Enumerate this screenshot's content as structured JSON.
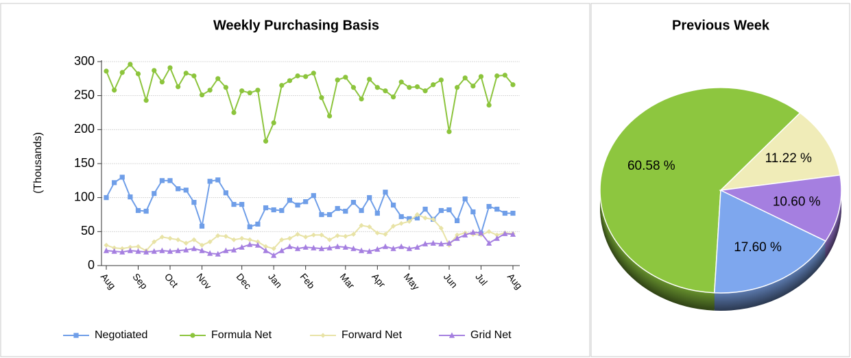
{
  "chart_data": [
    {
      "type": "line",
      "title": "Weekly Purchasing Basis",
      "y_label": "(Thousands)",
      "categories": [
        "Aug",
        null,
        null,
        null,
        "Sep",
        null,
        null,
        null,
        "Oct",
        null,
        null,
        null,
        "Nov",
        null,
        null,
        null,
        null,
        "Dec",
        null,
        null,
        null,
        "Jan",
        null,
        null,
        null,
        "Feb",
        null,
        null,
        null,
        null,
        "Mar",
        null,
        null,
        null,
        "Apr",
        null,
        null,
        null,
        "May",
        null,
        null,
        null,
        null,
        "Jun",
        null,
        null,
        null,
        "Jul",
        null,
        null,
        null,
        "Aug"
      ],
      "ylim": [
        0,
        300
      ],
      "yticks": [
        0,
        50,
        100,
        150,
        200,
        250,
        300
      ],
      "grid": true,
      "legend": "bottom",
      "series": [
        {
          "name": "Negotiated",
          "color": "#6f9ee8",
          "marker": "square",
          "values": [
            100,
            122,
            130,
            101,
            81,
            80,
            106,
            125,
            125,
            113,
            111,
            93,
            58,
            124,
            126,
            107,
            90,
            90,
            57,
            61,
            85,
            82,
            81,
            96,
            89,
            94,
            103,
            75,
            75,
            84,
            80,
            93,
            81,
            100,
            77,
            108,
            89,
            72,
            69,
            70,
            83,
            68,
            81,
            82,
            66,
            98,
            79,
            47,
            87,
            83,
            77,
            77
          ]
        },
        {
          "name": "Formula Net",
          "color": "#8cc43c",
          "marker": "circle",
          "values": [
            286,
            258,
            284,
            296,
            282,
            243,
            287,
            270,
            291,
            263,
            283,
            279,
            251,
            258,
            275,
            262,
            225,
            257,
            254,
            258,
            183,
            210,
            265,
            272,
            279,
            278,
            283,
            247,
            220,
            273,
            277,
            262,
            245,
            274,
            262,
            257,
            248,
            270,
            262,
            263,
            257,
            266,
            273,
            197,
            262,
            276,
            264,
            278,
            236,
            279,
            280,
            266
          ]
        },
        {
          "name": "Forward Net",
          "color": "#e8e3a6",
          "marker": "diamond",
          "values": [
            30,
            26,
            25,
            27,
            28,
            22,
            35,
            42,
            40,
            38,
            33,
            38,
            30,
            35,
            44,
            43,
            38,
            40,
            38,
            35,
            28,
            25,
            38,
            40,
            46,
            42,
            45,
            45,
            38,
            44,
            43,
            46,
            59,
            57,
            48,
            46,
            58,
            62,
            65,
            75,
            70,
            68,
            55,
            30,
            45,
            48,
            46,
            45,
            50,
            45,
            48,
            47
          ]
        },
        {
          "name": "Grid Net",
          "color": "#a57fe0",
          "marker": "triangle",
          "values": [
            22,
            21,
            20,
            22,
            21,
            20,
            21,
            22,
            21,
            22,
            23,
            25,
            22,
            18,
            17,
            22,
            23,
            27,
            31,
            30,
            22,
            15,
            22,
            28,
            25,
            27,
            26,
            25,
            26,
            28,
            27,
            25,
            22,
            21,
            24,
            28,
            25,
            28,
            25,
            27,
            32,
            33,
            32,
            33,
            40,
            45,
            49,
            48,
            33,
            40,
            47,
            46
          ]
        }
      ]
    },
    {
      "type": "pie",
      "title": "Previous Week",
      "values": [
        60.58,
        11.22,
        10.6,
        17.6
      ],
      "value_labels": [
        "60.58 %",
        "11.22 %",
        "10.60 %",
        "17.60 %"
      ],
      "colors": [
        "#8dc63f",
        "#f0ecb8",
        "#a57fe0",
        "#7ea7ee"
      ]
    }
  ]
}
